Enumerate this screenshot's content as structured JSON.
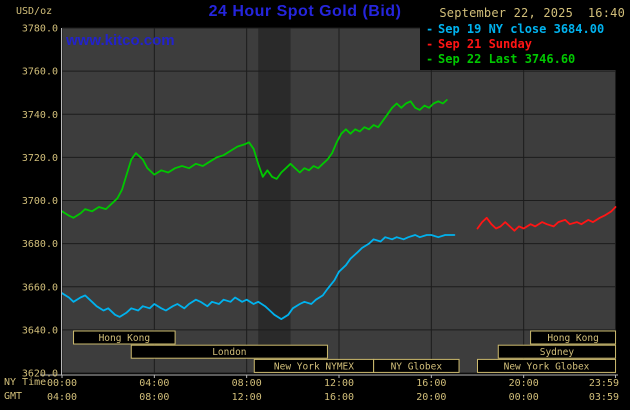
{
  "header": {
    "units_label": "USD/oz",
    "title": "24 Hour Spot Gold (Bid)",
    "datetime": "September 22, 2025  16:40",
    "watermark": "www.kitco.com",
    "legend": [
      {
        "dash": "-",
        "label": "Sep 19 NY close 3684.00",
        "color": "#00b2ee"
      },
      {
        "dash": "-",
        "label": "Sep 21 Sunday",
        "color": "#ff1515"
      },
      {
        "dash": "-",
        "label": "Sep 22 Last 3746.60",
        "color": "#00c800"
      }
    ]
  },
  "axes": {
    "ny_label": "NY Time",
    "gmt_label": "GMT"
  },
  "colors": {
    "page_bg": "#000000",
    "plot_bg": "#3d3d3d",
    "plot_band": "#2a2a2a",
    "grid": "#1c1c1c",
    "axis_line": "#b8b8b8",
    "axis_text": "#d2bf7a",
    "session_border": "#cdbb6e",
    "session_fill": "#000000",
    "title_blue": "#2525dd",
    "kitco_blue": "#2222cc"
  },
  "chart_data": {
    "type": "line",
    "title": "24 Hour Spot Gold (Bid)",
    "ylabel": "USD/oz",
    "xlabel": "NY Time / GMT",
    "grid": true,
    "legend_position": "top-right",
    "ylim": [
      3620,
      3780
    ],
    "x_range": [
      0,
      24
    ],
    "y_ticks": [
      3620,
      3640,
      3660,
      3680,
      3700,
      3720,
      3740,
      3760,
      3780
    ],
    "x_ticks": [
      {
        "h": 0,
        "ny": "00:00",
        "gmt": "04:00"
      },
      {
        "h": 4,
        "ny": "04:00",
        "gmt": "08:00"
      },
      {
        "h": 8,
        "ny": "08:00",
        "gmt": "12:00"
      },
      {
        "h": 12,
        "ny": "12:00",
        "gmt": "16:00"
      },
      {
        "h": 16,
        "ny": "16:00",
        "gmt": "20:00"
      },
      {
        "h": 20,
        "ny": "20:00",
        "gmt": "00:00"
      },
      {
        "h": 23.98,
        "ny": "23:59",
        "gmt": "03:59"
      }
    ],
    "dark_band": {
      "start": 8.5,
      "end": 9.9
    },
    "sessions": [
      {
        "label": "Hong Kong",
        "row": 0,
        "start": 0.5,
        "end": 4.9
      },
      {
        "label": "London",
        "row": 1,
        "start": 3.0,
        "end": 11.5
      },
      {
        "label": "New York NYMEX",
        "row": 2,
        "start": 8.33,
        "end": 13.5
      },
      {
        "label": "NY Globex",
        "row": 2,
        "start": 13.5,
        "end": 17.2
      },
      {
        "label": "Hong Kong",
        "row": 0,
        "start": 20.3,
        "end": 23.98
      },
      {
        "label": "Sydney",
        "row": 1,
        "start": 18.9,
        "end": 23.98
      },
      {
        "label": "New York Globex",
        "row": 2,
        "start": 18.0,
        "end": 23.98
      }
    ],
    "series": [
      {
        "name": "Sep 19 NY close",
        "close_value": 3684.0,
        "color": "#00b2ee",
        "points": [
          [
            0,
            3657
          ],
          [
            0.3,
            3655
          ],
          [
            0.5,
            3653
          ],
          [
            0.8,
            3655
          ],
          [
            1,
            3656
          ],
          [
            1.3,
            3653
          ],
          [
            1.5,
            3651
          ],
          [
            1.8,
            3649
          ],
          [
            2,
            3650
          ],
          [
            2.3,
            3647
          ],
          [
            2.5,
            3646
          ],
          [
            2.8,
            3648
          ],
          [
            3,
            3650
          ],
          [
            3.3,
            3649
          ],
          [
            3.5,
            3651
          ],
          [
            3.8,
            3650
          ],
          [
            4,
            3652
          ],
          [
            4.3,
            3650
          ],
          [
            4.5,
            3649
          ],
          [
            4.8,
            3651
          ],
          [
            5,
            3652
          ],
          [
            5.3,
            3650
          ],
          [
            5.5,
            3652
          ],
          [
            5.8,
            3654
          ],
          [
            6,
            3653
          ],
          [
            6.3,
            3651
          ],
          [
            6.5,
            3653
          ],
          [
            6.8,
            3652
          ],
          [
            7,
            3654
          ],
          [
            7.3,
            3653
          ],
          [
            7.5,
            3655
          ],
          [
            7.8,
            3653
          ],
          [
            8,
            3654
          ],
          [
            8.3,
            3652
          ],
          [
            8.5,
            3653
          ],
          [
            8.8,
            3651
          ],
          [
            9,
            3649
          ],
          [
            9.2,
            3647
          ],
          [
            9.5,
            3645
          ],
          [
            9.8,
            3647
          ],
          [
            10,
            3650
          ],
          [
            10.3,
            3652
          ],
          [
            10.5,
            3653
          ],
          [
            10.8,
            3652
          ],
          [
            11,
            3654
          ],
          [
            11.3,
            3656
          ],
          [
            11.5,
            3659
          ],
          [
            11.8,
            3663
          ],
          [
            12,
            3667
          ],
          [
            12.3,
            3670
          ],
          [
            12.5,
            3673
          ],
          [
            12.8,
            3676
          ],
          [
            13,
            3678
          ],
          [
            13.3,
            3680
          ],
          [
            13.5,
            3682
          ],
          [
            13.8,
            3681
          ],
          [
            14,
            3683
          ],
          [
            14.3,
            3682
          ],
          [
            14.5,
            3683
          ],
          [
            14.8,
            3682
          ],
          [
            15,
            3683
          ],
          [
            15.3,
            3684
          ],
          [
            15.5,
            3683
          ],
          [
            15.8,
            3684
          ],
          [
            16,
            3684
          ],
          [
            16.3,
            3683
          ],
          [
            16.6,
            3684
          ],
          [
            17,
            3684
          ]
        ]
      },
      {
        "name": "Sep 21 Sunday",
        "color": "#ff1515",
        "points": [
          [
            18,
            3687
          ],
          [
            18.2,
            3690
          ],
          [
            18.4,
            3692
          ],
          [
            18.6,
            3689
          ],
          [
            18.8,
            3687
          ],
          [
            19,
            3688
          ],
          [
            19.2,
            3690
          ],
          [
            19.4,
            3688
          ],
          [
            19.6,
            3686
          ],
          [
            19.8,
            3688
          ],
          [
            20,
            3687
          ],
          [
            20.3,
            3689
          ],
          [
            20.5,
            3688
          ],
          [
            20.8,
            3690
          ],
          [
            21,
            3689
          ],
          [
            21.3,
            3688
          ],
          [
            21.5,
            3690
          ],
          [
            21.8,
            3691
          ],
          [
            22,
            3689
          ],
          [
            22.3,
            3690
          ],
          [
            22.5,
            3689
          ],
          [
            22.8,
            3691
          ],
          [
            23,
            3690
          ],
          [
            23.3,
            3692
          ],
          [
            23.5,
            3693
          ],
          [
            23.8,
            3695
          ],
          [
            23.98,
            3697
          ]
        ]
      },
      {
        "name": "Sep 22 Last",
        "last_value": 3746.6,
        "color": "#00c800",
        "points": [
          [
            0,
            3695
          ],
          [
            0.3,
            3693
          ],
          [
            0.5,
            3692
          ],
          [
            0.8,
            3694
          ],
          [
            1,
            3696
          ],
          [
            1.3,
            3695
          ],
          [
            1.6,
            3697
          ],
          [
            1.9,
            3696
          ],
          [
            2.1,
            3698
          ],
          [
            2.4,
            3701
          ],
          [
            2.6,
            3705
          ],
          [
            2.8,
            3712
          ],
          [
            3,
            3719
          ],
          [
            3.2,
            3722
          ],
          [
            3.5,
            3719
          ],
          [
            3.7,
            3715
          ],
          [
            4,
            3712
          ],
          [
            4.3,
            3714
          ],
          [
            4.6,
            3713
          ],
          [
            4.9,
            3715
          ],
          [
            5.2,
            3716
          ],
          [
            5.5,
            3715
          ],
          [
            5.8,
            3717
          ],
          [
            6.1,
            3716
          ],
          [
            6.4,
            3718
          ],
          [
            6.7,
            3720
          ],
          [
            7,
            3721
          ],
          [
            7.3,
            3723
          ],
          [
            7.6,
            3725
          ],
          [
            7.9,
            3726
          ],
          [
            8.1,
            3727
          ],
          [
            8.3,
            3724
          ],
          [
            8.5,
            3717
          ],
          [
            8.7,
            3711
          ],
          [
            8.9,
            3714
          ],
          [
            9.1,
            3711
          ],
          [
            9.3,
            3710
          ],
          [
            9.5,
            3713
          ],
          [
            9.7,
            3715
          ],
          [
            9.9,
            3717
          ],
          [
            10.1,
            3715
          ],
          [
            10.3,
            3713
          ],
          [
            10.5,
            3715
          ],
          [
            10.7,
            3714
          ],
          [
            10.9,
            3716
          ],
          [
            11.1,
            3715
          ],
          [
            11.3,
            3717
          ],
          [
            11.5,
            3719
          ],
          [
            11.7,
            3722
          ],
          [
            11.9,
            3727
          ],
          [
            12.1,
            3731
          ],
          [
            12.3,
            3733
          ],
          [
            12.5,
            3731
          ],
          [
            12.7,
            3733
          ],
          [
            12.9,
            3732
          ],
          [
            13.1,
            3734
          ],
          [
            13.3,
            3733
          ],
          [
            13.5,
            3735
          ],
          [
            13.7,
            3734
          ],
          [
            13.9,
            3737
          ],
          [
            14.1,
            3740
          ],
          [
            14.3,
            3743
          ],
          [
            14.5,
            3745
          ],
          [
            14.7,
            3743
          ],
          [
            14.9,
            3745
          ],
          [
            15.1,
            3746
          ],
          [
            15.3,
            3743
          ],
          [
            15.5,
            3742
          ],
          [
            15.7,
            3744
          ],
          [
            15.9,
            3743
          ],
          [
            16.1,
            3745
          ],
          [
            16.3,
            3746
          ],
          [
            16.5,
            3745
          ],
          [
            16.67,
            3746.6
          ]
        ]
      }
    ]
  }
}
